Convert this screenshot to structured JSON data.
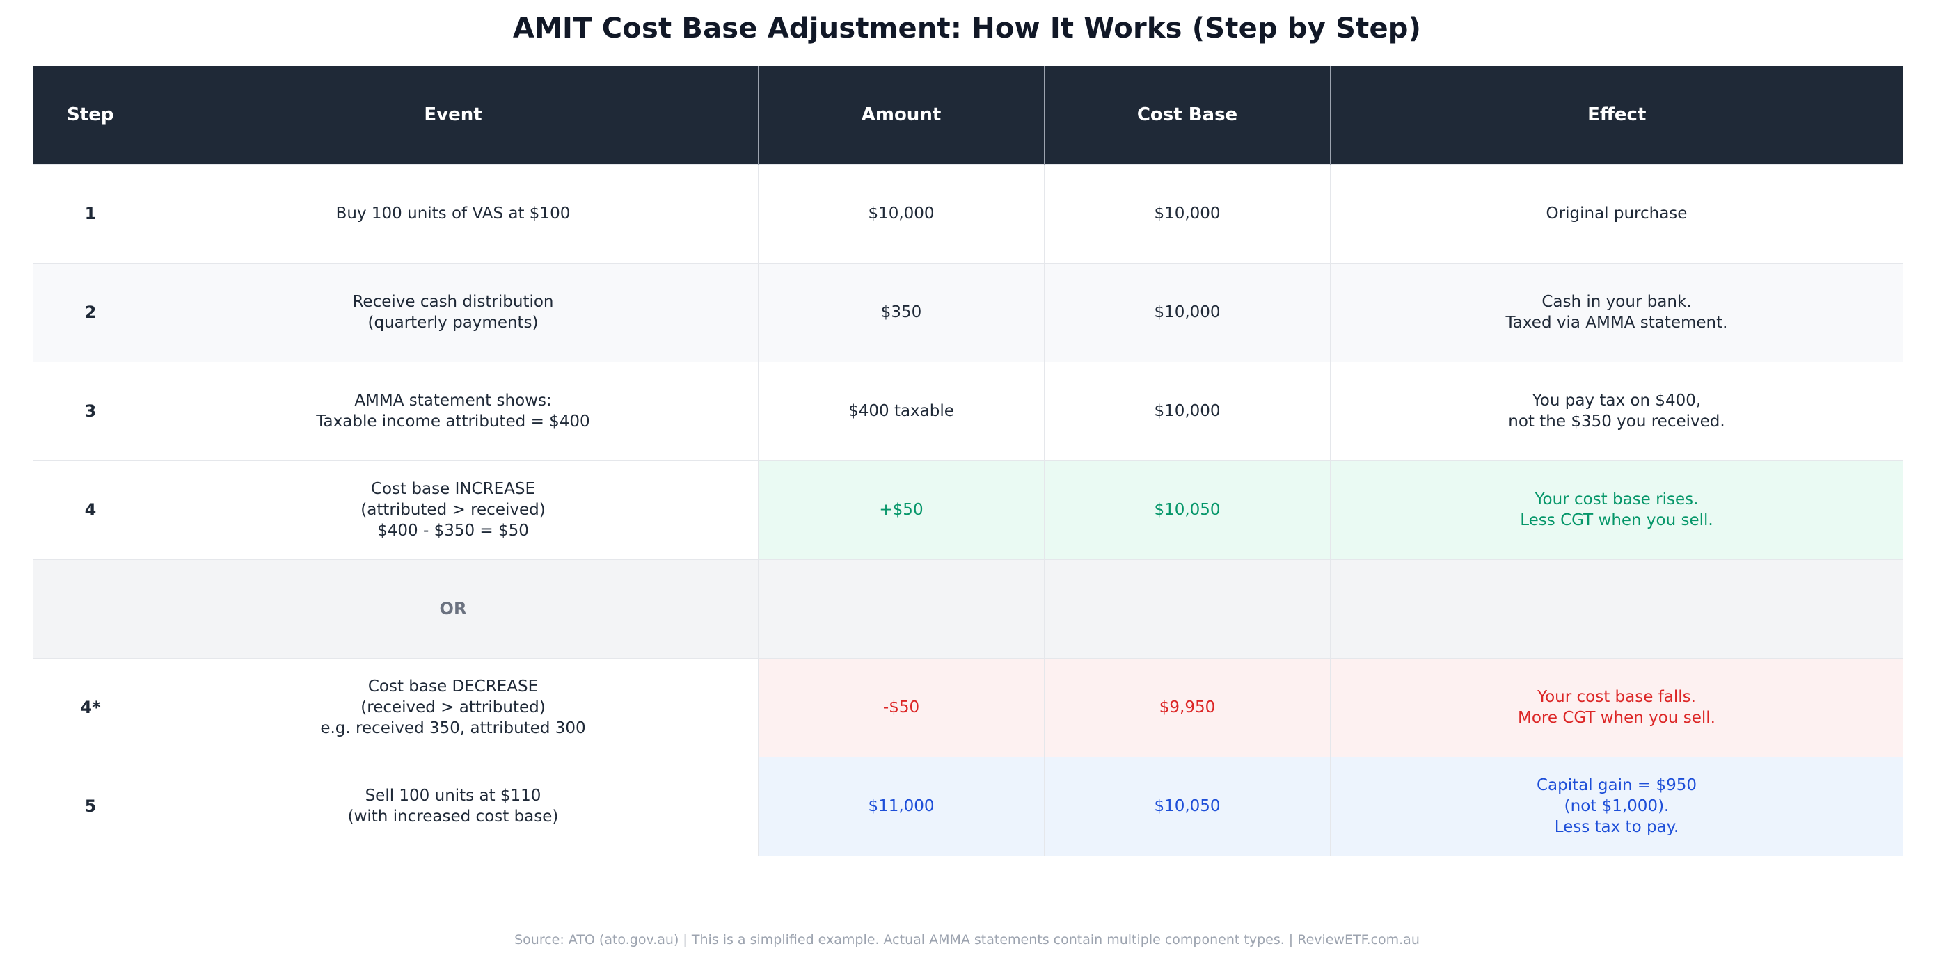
{
  "chart_data": {
    "type": "table",
    "title": "AMIT Cost Base Adjustment: How It Works (Step by Step)",
    "columns": [
      "Step",
      "Event",
      "Amount",
      "Cost Base",
      "Effect"
    ],
    "rows": [
      {
        "step": "1",
        "event": "Buy 100 units of VAS at $100",
        "amount": "$10,000",
        "cost_base": "$10,000",
        "effect": "Original purchase"
      },
      {
        "step": "2",
        "event": "Receive cash distribution\n(quarterly payments)",
        "amount": "$350",
        "cost_base": "$10,000",
        "effect": "Cash in your bank.\nTaxed via AMMA statement."
      },
      {
        "step": "3",
        "event": "AMMA statement shows:\nTaxable income attributed = $400",
        "amount": "$400 taxable",
        "cost_base": "$10,000",
        "effect": "You pay tax on $400,\nnot the $350 you received."
      },
      {
        "step": "4",
        "event": "Cost base INCREASE\n(attributed > received)\n$400 - $350 = $50",
        "amount": "+$50",
        "cost_base": "$10,050",
        "effect": "Your cost base rises.\nLess CGT when you sell."
      },
      {
        "step": "",
        "event": "OR",
        "amount": "",
        "cost_base": "",
        "effect": ""
      },
      {
        "step": "4*",
        "event": "Cost base DECREASE\n(received > attributed)\ne.g. received 350, attributed 300",
        "amount": "-$50",
        "cost_base": "$9,950",
        "effect": "Your cost base falls.\nMore CGT when you sell."
      },
      {
        "step": "5",
        "event": "Sell 100 units at $110\n(with increased cost base)",
        "amount": "$11,000",
        "cost_base": "$10,050",
        "effect": "Capital gain = $950\n(not $1,000).\nLess tax to pay."
      }
    ],
    "highlight_colors": {
      "increase": "#059669",
      "decrease": "#dc2626",
      "sale": "#1d4ed8"
    }
  },
  "source": "Source: ATO (ato.gov.au) | This is a simplified example. Actual AMMA statements contain multiple component types. | ReviewETF.com.au"
}
